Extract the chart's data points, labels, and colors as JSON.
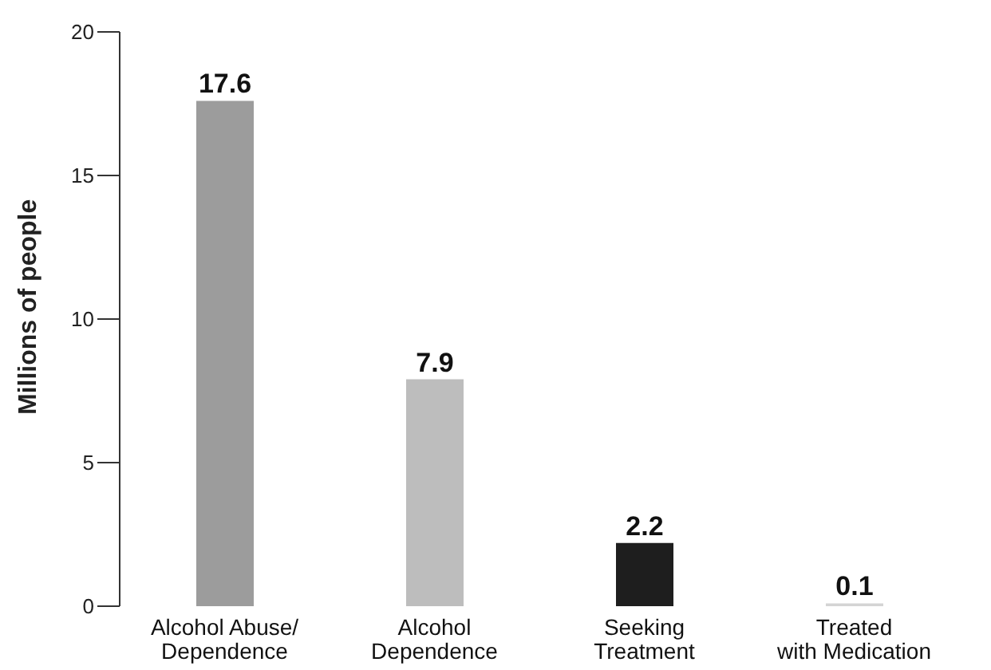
{
  "chart_data": {
    "type": "bar",
    "ylabel": "Millions of people",
    "categories": [
      "Alcohol Abuse/\nDependence",
      "Alcohol\nDependence",
      "Seeking\nTreatment",
      "Treated\nwith Medication"
    ],
    "values": [
      17.6,
      7.9,
      2.2,
      0.1
    ],
    "colors": [
      "#9c9c9c",
      "#bdbdbd",
      "#1e1e1e",
      "#d4d4d4"
    ],
    "ylim": [
      0,
      20
    ],
    "yticks": [
      0,
      5,
      10,
      15,
      20
    ],
    "grid": false,
    "data_labels": true
  }
}
